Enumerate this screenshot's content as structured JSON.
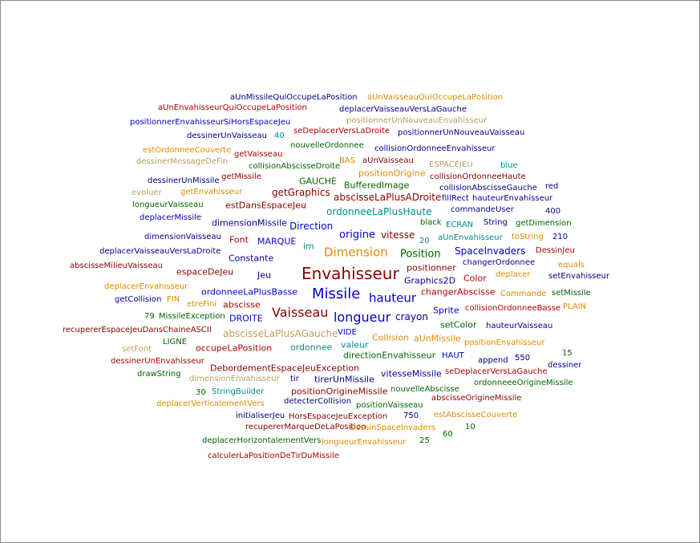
{
  "words": [
    {
      "text": "aUnMissileQuiOccupeLaPosition",
      "color": "db"
    },
    {
      "text": "aUnVaisseauQuiOccupeLaPosition",
      "color": "or"
    },
    {
      "text": "aUnEnvahisseurQuiOccupeLaPosition",
      "color": "dr"
    },
    {
      "text": "deplacerVaisseauVersLaGauche",
      "color": "db"
    },
    {
      "text": "positionnerEnvahisseurSiHorsEspaceJeu",
      "color": "bl"
    },
    {
      "text": "positionnerUnNouveauEnvahisseur",
      "color": "kh"
    },
    {
      "text": "seDeplacerVersLaDroite",
      "color": "dr"
    },
    {
      "text": "positionnerUnNouveauVaisseau",
      "color": "db"
    },
    {
      "text": "dessinerUnVaisseau",
      "color": "db"
    },
    {
      "text": "40",
      "color": "tl"
    },
    {
      "text": "nouvelleOrdonnee",
      "color": "dg"
    },
    {
      "text": "collisionOrdonneeEnvahisseur",
      "color": "db"
    },
    {
      "text": "estOrdonneeCouverte",
      "color": "or"
    },
    {
      "text": "getVaisseau",
      "color": "dr"
    },
    {
      "text": "dessinerMessageDeFin",
      "color": "kh"
    },
    {
      "text": "collisionAbscisseDroite",
      "color": "dg"
    },
    {
      "text": "BAS",
      "color": "or"
    },
    {
      "text": "aUnVaisseau",
      "color": "mr"
    },
    {
      "text": "ESPACEJEU",
      "color": "kh"
    },
    {
      "text": "blue",
      "color": "tl"
    },
    {
      "text": "positionOrigine",
      "color": "or"
    },
    {
      "text": "collisionOrdonneeHaute",
      "color": "mr"
    },
    {
      "text": "dessinerUnMissile",
      "color": "db"
    },
    {
      "text": "getMissile",
      "color": "dr"
    },
    {
      "text": "GAUCHE",
      "color": "dg"
    },
    {
      "text": "BufferedImage",
      "color": "dg"
    },
    {
      "text": "collisionAbscisseGauche",
      "color": "db"
    },
    {
      "text": "red",
      "color": "db"
    },
    {
      "text": "evoluer",
      "color": "kh"
    },
    {
      "text": "getEnvahisseur",
      "color": "or"
    },
    {
      "text": "getGraphics",
      "color": "mr"
    },
    {
      "text": "abscisseLaPlusADroite",
      "color": "mr"
    },
    {
      "text": "fillRect",
      "color": "db"
    },
    {
      "text": "hauteurEnvahisseur",
      "color": "db"
    },
    {
      "text": "longueurVaisseau",
      "color": "dg"
    },
    {
      "text": "estDansEspaceJeu",
      "color": "mr"
    },
    {
      "text": "ordonneeLaPlusHaute",
      "color": "tl"
    },
    {
      "text": "commandeUser",
      "color": "db"
    },
    {
      "text": "400",
      "color": "db"
    },
    {
      "text": "deplacerMissile",
      "color": "bl"
    },
    {
      "text": "dimensionMissile",
      "color": "db"
    },
    {
      "text": "black",
      "color": "dg"
    },
    {
      "text": "ECRAN",
      "color": "tl"
    },
    {
      "text": "String",
      "color": "db"
    },
    {
      "text": "getDimension",
      "color": "dg"
    },
    {
      "text": "Direction",
      "color": "bl"
    },
    {
      "text": "dimensionVaisseau",
      "color": "db"
    },
    {
      "text": "origine",
      "color": "bl"
    },
    {
      "text": "vitesse",
      "color": "mr"
    },
    {
      "text": "20",
      "color": "tl"
    },
    {
      "text": "aUnEnvahisseur",
      "color": "tl"
    },
    {
      "text": "toString",
      "color": "or"
    },
    {
      "text": "210",
      "color": "db"
    },
    {
      "text": "Font",
      "color": "dr"
    },
    {
      "text": "MARQUE",
      "color": "bl"
    },
    {
      "text": "im",
      "color": "tl"
    },
    {
      "text": "deplacerVaisseauVersLaDroite",
      "color": "db"
    },
    {
      "text": "Dimension",
      "color": "or"
    },
    {
      "text": "Position",
      "color": "dg"
    },
    {
      "text": "SpaceInvaders",
      "color": "bl"
    },
    {
      "text": "DessinJeu",
      "color": "dr"
    },
    {
      "text": "Constante",
      "color": "db"
    },
    {
      "text": "changerOrdonnee",
      "color": "db"
    },
    {
      "text": "abscisseMilieuVaisseau",
      "color": "mr"
    },
    {
      "text": "equals",
      "color": "or"
    },
    {
      "text": "espaceDeJeu",
      "color": "mr"
    },
    {
      "text": "Envahisseur",
      "color": "mr"
    },
    {
      "text": "positionner",
      "color": "mr"
    },
    {
      "text": "Jeu",
      "color": "db"
    },
    {
      "text": "Color",
      "color": "dr"
    },
    {
      "text": "deplacer",
      "color": "or"
    },
    {
      "text": "setEnvahisseur",
      "color": "db"
    },
    {
      "text": "Graphics2D",
      "color": "db"
    },
    {
      "text": "deplacerEnvahisseur",
      "color": "or"
    },
    {
      "text": "ordonneeLaPlusBasse",
      "color": "bl"
    },
    {
      "text": "Missile",
      "color": "bl"
    },
    {
      "text": "changerAbscisse",
      "color": "dr"
    },
    {
      "text": "Commande",
      "color": "or"
    },
    {
      "text": "setMissile",
      "color": "dg"
    },
    {
      "text": "getCollision",
      "color": "db"
    },
    {
      "text": "FIN",
      "color": "or"
    },
    {
      "text": "hauteur",
      "color": "bl"
    },
    {
      "text": "etreFini",
      "color": "or"
    },
    {
      "text": "abscisse",
      "color": "dr"
    },
    {
      "text": "Sprite",
      "color": "bl"
    },
    {
      "text": "collisionOrdonneeBasse",
      "color": "dr"
    },
    {
      "text": "PLAIN",
      "color": "or"
    },
    {
      "text": "79",
      "color": "dg"
    },
    {
      "text": "MissileException",
      "color": "dg"
    },
    {
      "text": "DROITE",
      "color": "bl"
    },
    {
      "text": "Vaisseau",
      "color": "mr"
    },
    {
      "text": "longueur",
      "color": "bl"
    },
    {
      "text": "crayon",
      "color": "db"
    },
    {
      "text": "setColor",
      "color": "dg"
    },
    {
      "text": "hauteurVaisseau",
      "color": "db"
    },
    {
      "text": "recupererEspaceJeuDansChaineASCII",
      "color": "mr"
    },
    {
      "text": "abscisseLaPlusAGauche",
      "color": "kh"
    },
    {
      "text": "VIDE",
      "color": "bl"
    },
    {
      "text": "LIGNE",
      "color": "dg"
    },
    {
      "text": "Collision",
      "color": "or"
    },
    {
      "text": "aUnMissile",
      "color": "or"
    },
    {
      "text": "positionEnvahisseur",
      "color": "or"
    },
    {
      "text": "setFont",
      "color": "kh"
    },
    {
      "text": "occupeLaPosition",
      "color": "dr"
    },
    {
      "text": "ordonnee",
      "color": "tl"
    },
    {
      "text": "valeur",
      "color": "tl"
    },
    {
      "text": "15",
      "color": "dg"
    },
    {
      "text": "directionEnvahisseur",
      "color": "dg"
    },
    {
      "text": "HAUT",
      "color": "bl"
    },
    {
      "text": "append",
      "color": "db"
    },
    {
      "text": "550",
      "color": "db"
    },
    {
      "text": "dessinerUnEnvahisseur",
      "color": "dr"
    },
    {
      "text": "dessiner",
      "color": "db"
    },
    {
      "text": "DebordementEspaceJeuException",
      "color": "mr"
    },
    {
      "text": "drawString",
      "color": "dg"
    },
    {
      "text": "vitesseMissile",
      "color": "db"
    },
    {
      "text": "seDeplacerVersLaGauche",
      "color": "dr"
    },
    {
      "text": "dimensionEnvahisseur",
      "color": "kh"
    },
    {
      "text": "tir",
      "color": "db"
    },
    {
      "text": "tirerUnMissile",
      "color": "db"
    },
    {
      "text": "ordonneeeOrigineMissile",
      "color": "dg"
    },
    {
      "text": "30",
      "color": "dg"
    },
    {
      "text": "StringBuilder",
      "color": "tl"
    },
    {
      "text": "positionOrigineMissile",
      "color": "mr"
    },
    {
      "text": "nouvelleAbscisse",
      "color": "dg"
    },
    {
      "text": "abscisseOrigineMissile",
      "color": "mr"
    },
    {
      "text": "deplacerVerticalementVers",
      "color": "or"
    },
    {
      "text": "detecterCollision",
      "color": "db"
    },
    {
      "text": "positionVaisseau",
      "color": "dg"
    },
    {
      "text": "initialiserJeu",
      "color": "db"
    },
    {
      "text": "HorsEspaceJeuException",
      "color": "mr"
    },
    {
      "text": "750",
      "color": "db"
    },
    {
      "text": "estAbscisseCouverte",
      "color": "or"
    },
    {
      "text": "recupererMarqueDeLaPosition",
      "color": "mr"
    },
    {
      "text": "DessinSpaceInvaders",
      "color": "or"
    },
    {
      "text": "10",
      "color": "dg"
    },
    {
      "text": "60",
      "color": "dg"
    },
    {
      "text": "deplacerHorizontalementVers",
      "color": "dg"
    },
    {
      "text": "longueurEnvahisseur",
      "color": "or"
    },
    {
      "text": "25",
      "color": "dg"
    },
    {
      "text": "calculerLaPositionDeTirDuMissile",
      "color": "dr"
    }
  ]
}
